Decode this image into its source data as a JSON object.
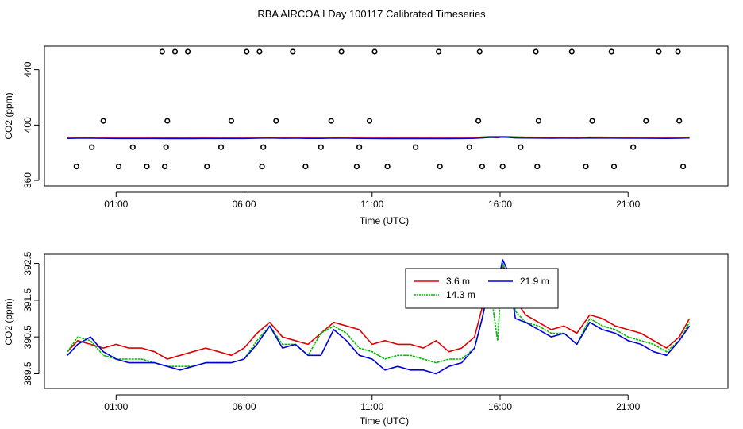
{
  "chart_data": [
    {
      "type": "scatter",
      "title": "RBA AIRCOA I  Day 100117  Calibrated Timeseries",
      "xlabel": "Time (UTC)",
      "ylabel": "CO2 (ppm)",
      "x_unit": "hours UTC",
      "xlim": [
        -1.8,
        24.9
      ],
      "ylim": [
        356,
        457
      ],
      "x_tick_labels": [
        "01:00",
        "06:00",
        "11:00",
        "16:00",
        "21:00"
      ],
      "x_tick_values": [
        1,
        6,
        11,
        16,
        21
      ],
      "y_tick_labels": [
        "360",
        "400",
        "440"
      ],
      "y_tick_values": [
        360,
        400,
        440
      ],
      "calibration_points": {
        "x": [
          -0.55,
          0.05,
          0.5,
          1.1,
          1.65,
          2.2,
          2.8,
          2.9,
          2.95,
          3.0,
          3.3,
          3.8,
          4.55,
          5.1,
          5.5,
          6.1,
          6.6,
          6.7,
          6.75,
          7.25,
          7.9,
          8.4,
          9.0,
          9.4,
          9.8,
          10.4,
          10.5,
          10.9,
          11.1,
          11.6,
          12.7,
          13.6,
          13.65,
          14.8,
          15.15,
          15.2,
          15.3,
          16.1,
          16.8,
          17.4,
          17.45,
          17.5,
          18.8,
          19.35,
          19.6,
          20.35,
          20.45,
          21.2,
          21.7,
          22.2,
          22.95,
          23.0,
          23.15
        ],
        "y": [
          370,
          384,
          403,
          370,
          384,
          370,
          453,
          370,
          384,
          403,
          453,
          453,
          370,
          384,
          403,
          453,
          453,
          370,
          384,
          403,
          453,
          370,
          384,
          403,
          453,
          370,
          384,
          403,
          453,
          370,
          384,
          453,
          370,
          384,
          403,
          453,
          370,
          370,
          384,
          453,
          370,
          403,
          453,
          370,
          403,
          453,
          370,
          384,
          403,
          453,
          453,
          403,
          370
        ],
        "style": "open circle"
      },
      "series": [
        {
          "name": "3.6 m",
          "color": "#dd0000",
          "level": 391.0
        },
        {
          "name": "14.3 m",
          "color": "#00bb00",
          "level": 390.7
        },
        {
          "name": "21.9 m",
          "color": "#0000dd",
          "level": 390.4
        }
      ]
    },
    {
      "type": "line",
      "xlabel": "Time (UTC)",
      "ylabel": "CO2 (ppm)",
      "x_unit": "hours UTC",
      "xlim": [
        -1.8,
        24.9
      ],
      "ylim": [
        389.1,
        392.75
      ],
      "x_tick_labels": [
        "01:00",
        "06:00",
        "11:00",
        "16:00",
        "21:00"
      ],
      "x_tick_values": [
        1,
        6,
        11,
        16,
        21
      ],
      "y_tick_labels": [
        "389.5",
        "390.5",
        "391.5",
        "392.5"
      ],
      "y_tick_values": [
        389.5,
        390.5,
        391.5,
        392.5
      ],
      "legend": {
        "position": "top-center-right"
      },
      "x": [
        -0.9,
        -0.5,
        0,
        0.5,
        1,
        1.5,
        2,
        2.5,
        3,
        3.5,
        4,
        4.5,
        5,
        5.5,
        6,
        6.5,
        7,
        7.5,
        8,
        8.5,
        9,
        9.5,
        10,
        10.5,
        11,
        11.5,
        12,
        12.5,
        13,
        13.5,
        14,
        14.5,
        15,
        15.3,
        15.6,
        15.9,
        16.1,
        16.3,
        16.6,
        17,
        17.5,
        18,
        18.5,
        19,
        19.5,
        20,
        20.5,
        21,
        21.5,
        22,
        22.5,
        23,
        23.4
      ],
      "series": [
        {
          "name": "3.6 m",
          "color": "#dd0000",
          "values": [
            390.1,
            390.4,
            390.3,
            390.2,
            390.3,
            390.2,
            390.2,
            390.1,
            389.9,
            390.0,
            390.1,
            390.2,
            390.1,
            390.0,
            390.2,
            390.6,
            390.9,
            390.5,
            390.4,
            390.3,
            390.6,
            390.9,
            390.8,
            390.7,
            390.3,
            390.4,
            390.3,
            390.3,
            390.2,
            390.4,
            390.1,
            390.2,
            390.5,
            391.3,
            392.2,
            392.3,
            392.4,
            392.3,
            391.5,
            391.1,
            390.9,
            390.7,
            390.8,
            390.6,
            391.1,
            391.0,
            390.8,
            390.7,
            390.6,
            390.4,
            390.2,
            390.5,
            391.0
          ]
        },
        {
          "name": "14.3 m",
          "color": "#00bb00",
          "values": [
            390.1,
            390.5,
            390.4,
            390.0,
            389.9,
            389.9,
            389.9,
            389.8,
            389.7,
            389.7,
            389.7,
            389.8,
            389.8,
            389.8,
            389.9,
            390.4,
            390.8,
            390.3,
            390.3,
            390.0,
            390.6,
            390.8,
            390.6,
            390.2,
            390.1,
            389.9,
            390.0,
            390.0,
            389.9,
            389.8,
            389.9,
            389.9,
            390.2,
            391.0,
            391.9,
            390.4,
            392.5,
            392.2,
            391.2,
            390.9,
            390.8,
            390.6,
            390.6,
            390.3,
            391.0,
            390.8,
            390.7,
            390.5,
            390.4,
            390.3,
            390.1,
            390.4,
            390.9
          ]
        },
        {
          "name": "21.9 m",
          "color": "#0000dd",
          "values": [
            390.0,
            390.3,
            390.5,
            390.1,
            389.9,
            389.8,
            389.8,
            389.8,
            389.7,
            389.6,
            389.7,
            389.8,
            389.8,
            389.8,
            389.9,
            390.3,
            390.8,
            390.2,
            390.3,
            390.0,
            390.0,
            390.7,
            390.4,
            390.0,
            389.9,
            389.6,
            389.7,
            389.6,
            389.6,
            389.5,
            389.7,
            389.8,
            390.2,
            391.0,
            392.0,
            391.9,
            392.6,
            392.3,
            391.0,
            390.9,
            390.7,
            390.5,
            390.6,
            390.3,
            390.9,
            390.7,
            390.6,
            390.4,
            390.3,
            390.1,
            390.0,
            390.4,
            390.8
          ]
        }
      ]
    }
  ]
}
